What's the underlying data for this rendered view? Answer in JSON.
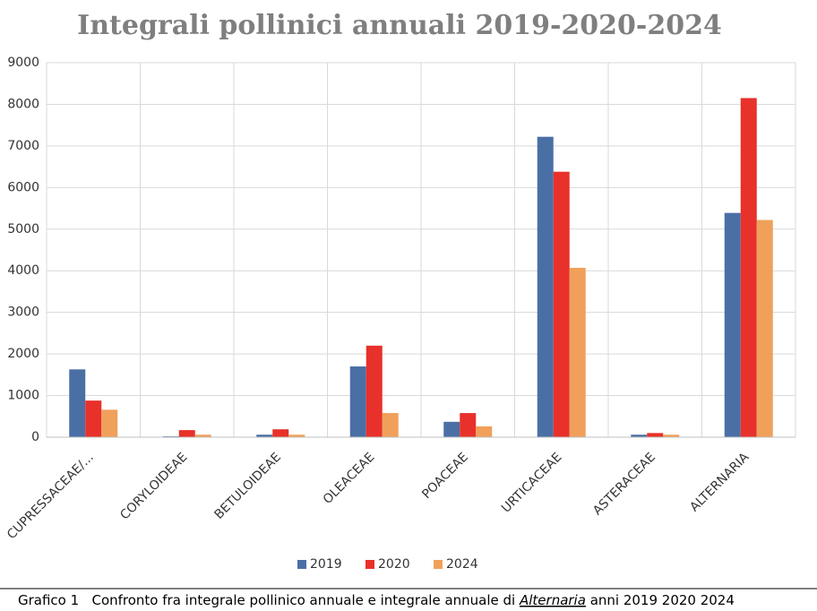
{
  "chart_data": {
    "type": "bar",
    "title": "Integrali pollinici annuali 2019-2020-2024",
    "categories": [
      "CUPRESSACEAE/...",
      "CORYLOIDEAE",
      "BETULOIDEAE",
      "OLEACEAE",
      "POACEAE",
      "URTICACEAE",
      "ASTERACEAE",
      "ALTERNARIA"
    ],
    "series": [
      {
        "name": "2019",
        "color": "#4a6fa5",
        "values": [
          1630,
          20,
          60,
          1700,
          370,
          7220,
          60,
          5390
        ]
      },
      {
        "name": "2020",
        "color": "#e8312a",
        "values": [
          880,
          170,
          190,
          2200,
          580,
          6380,
          100,
          8150
        ]
      },
      {
        "name": "2024",
        "color": "#f0a05a",
        "values": [
          660,
          60,
          60,
          580,
          260,
          4070,
          60,
          5220
        ]
      }
    ],
    "ylim": [
      0,
      9000
    ],
    "yticks": [
      0,
      1000,
      2000,
      3000,
      4000,
      5000,
      6000,
      7000,
      8000,
      9000
    ],
    "grid": true,
    "legend": "bottom"
  },
  "caption": [
    "Grafico 1   Confronto fra integrale pollinico annuale e integrale annuale di ",
    "Alternaria",
    " anni 2019 2020 2024"
  ]
}
